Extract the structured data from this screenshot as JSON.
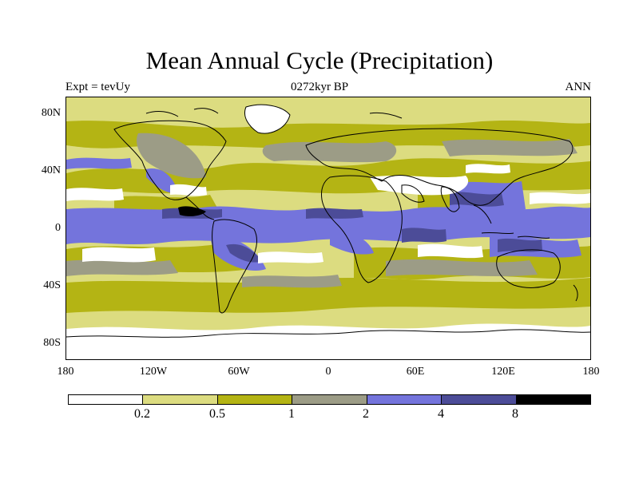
{
  "header": {
    "title": "Mean Annual Cycle (Precipitation)",
    "left": "Expt = tevUy",
    "center": "0272kyr BP",
    "right": "ANN"
  },
  "map": {
    "lat_ticks": [
      "80N",
      "40N",
      "0",
      "40S",
      "80S"
    ],
    "lon_ticks": [
      "180",
      "120W",
      "60W",
      "0",
      "60E",
      "120E",
      "180"
    ]
  },
  "legend": {
    "colors": [
      "#ffffff",
      "#dcdc80",
      "#b4b414",
      "#9c9c86",
      "#7474dc",
      "#4c4c98",
      "#000000"
    ],
    "labels": [
      "0.2",
      "0.5",
      "1",
      "2",
      "4",
      "8"
    ]
  }
}
